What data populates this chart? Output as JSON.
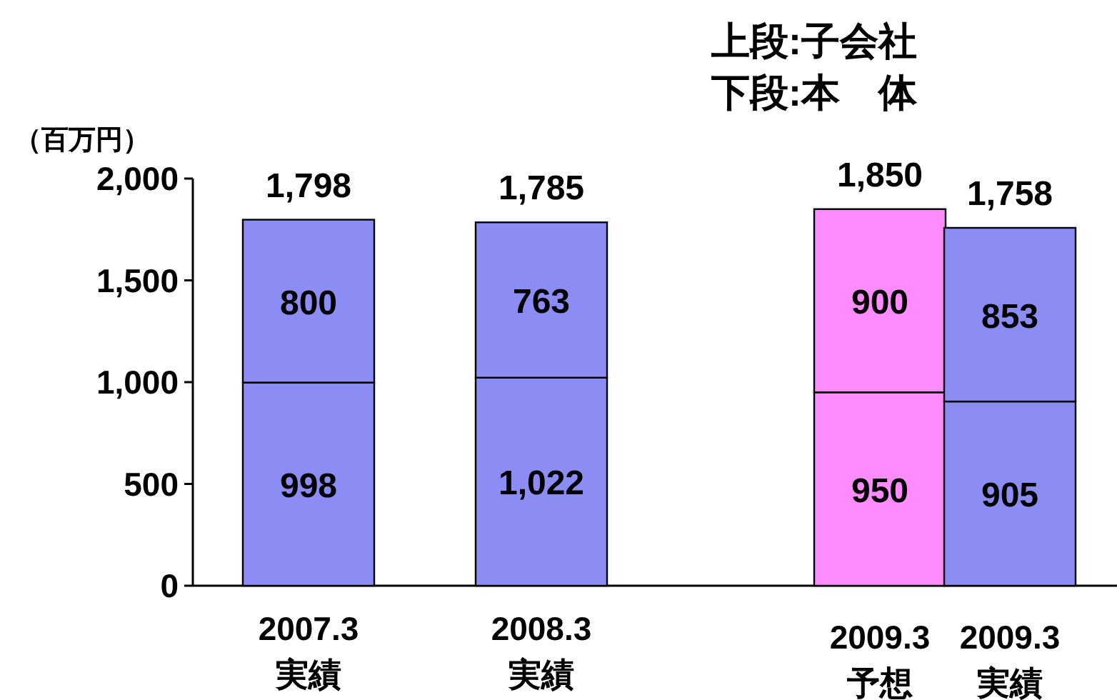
{
  "chart_data": {
    "type": "bar",
    "stacked": true,
    "ylabel": "（百万円）",
    "categories": [
      "2007.3\n実績",
      "2008.3\n実績",
      "2009.3\n予想",
      "2009.3\n実績"
    ],
    "series": [
      {
        "colors": [
          "#8c8cf5",
          "#8c8cf5",
          "#ff8cff",
          "#8c8cf5"
        ],
        "values": [
          998,
          1022,
          950,
          905
        ],
        "value_labels": [
          "998",
          "1,022",
          "950",
          "905"
        ]
      },
      {
        "colors": [
          "#8c8cf5",
          "#8c8cf5",
          "#ff8cff",
          "#8c8cf5"
        ],
        "values": [
          800,
          763,
          900,
          853
        ],
        "value_labels": [
          "800",
          "763",
          "900",
          "853"
        ]
      }
    ],
    "totals": [
      "1,798",
      "1,785",
      "1,850",
      "1,758"
    ],
    "ylim": [
      0,
      2000
    ],
    "yticks": [
      0,
      500,
      {
        "value": 1000,
        "label": "1,000"
      },
      {
        "value": 1500,
        "label": "1,500"
      },
      {
        "value": 2000,
        "label": "2,000"
      }
    ],
    "grid": false,
    "annotations": [
      "上段:子会社",
      "下段:本　体"
    ]
  }
}
